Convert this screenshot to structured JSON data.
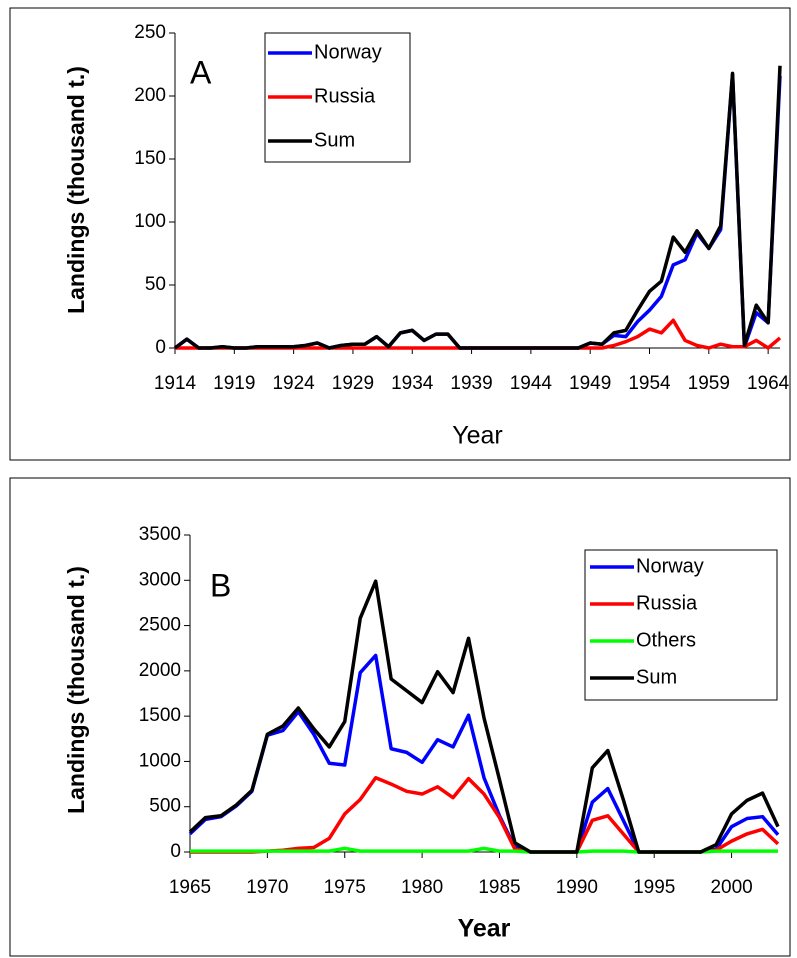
{
  "chart_data": [
    {
      "type": "line",
      "annotation": "A",
      "y_label": "Landings (thousand t.)",
      "x_label": "Year",
      "x": [
        1914,
        1915,
        1916,
        1917,
        1918,
        1919,
        1920,
        1921,
        1922,
        1923,
        1924,
        1925,
        1926,
        1927,
        1928,
        1929,
        1930,
        1931,
        1932,
        1933,
        1934,
        1935,
        1936,
        1937,
        1938,
        1939,
        1940,
        1941,
        1942,
        1943,
        1944,
        1945,
        1946,
        1947,
        1948,
        1949,
        1950,
        1951,
        1952,
        1953,
        1954,
        1955,
        1956,
        1957,
        1958,
        1959,
        1960,
        1961,
        1962,
        1963,
        1964,
        1965
      ],
      "xlim": [
        1914,
        1965
      ],
      "xticks": [
        1914,
        1919,
        1924,
        1929,
        1934,
        1939,
        1944,
        1949,
        1954,
        1959,
        1964
      ],
      "ylim": [
        0,
        250
      ],
      "yticks": [
        0,
        50,
        100,
        150,
        200,
        250
      ],
      "legend": "top-left",
      "series": [
        {
          "name": "Norway",
          "color": "#0000ff",
          "values": [
            0,
            7,
            0,
            0,
            1,
            0,
            0,
            1,
            1,
            1,
            1,
            2,
            4,
            0,
            2,
            3,
            3,
            9,
            1,
            12,
            14,
            6,
            11,
            11,
            0,
            0,
            0,
            0,
            0,
            0,
            0,
            0,
            0,
            0,
            0,
            4,
            3,
            10,
            9,
            21,
            30,
            41,
            66,
            70,
            91,
            79,
            94,
            217,
            1,
            28,
            20,
            216
          ]
        },
        {
          "name": "Russia",
          "color": "#ff0000",
          "values": [
            0,
            0,
            0,
            0,
            0,
            0,
            0,
            0,
            0,
            0,
            0,
            0,
            0,
            0,
            0,
            0,
            0,
            0,
            0,
            0,
            0,
            0,
            0,
            0,
            0,
            0,
            0,
            0,
            0,
            0,
            0,
            0,
            0,
            0,
            0,
            0,
            0,
            2,
            5,
            9,
            15,
            12,
            22,
            6,
            2,
            0,
            3,
            1,
            1,
            6,
            0,
            8
          ]
        },
        {
          "name": "Sum",
          "color": "#000000",
          "values": [
            0,
            7,
            0,
            0,
            1,
            0,
            0,
            1,
            1,
            1,
            1,
            2,
            4,
            0,
            2,
            3,
            3,
            9,
            1,
            12,
            14,
            6,
            11,
            11,
            0,
            0,
            0,
            0,
            0,
            0,
            0,
            0,
            0,
            0,
            0,
            4,
            3,
            12,
            14,
            30,
            45,
            53,
            88,
            76,
            93,
            79,
            97,
            218,
            2,
            34,
            20,
            224
          ]
        }
      ]
    },
    {
      "type": "line",
      "annotation": "B",
      "y_label": "Landings (thousand t.)",
      "x_label": "Year",
      "x": [
        1965,
        1966,
        1967,
        1968,
        1969,
        1970,
        1971,
        1972,
        1973,
        1974,
        1975,
        1976,
        1977,
        1978,
        1979,
        1980,
        1981,
        1982,
        1983,
        1984,
        1985,
        1986,
        1987,
        1988,
        1989,
        1990,
        1991,
        1992,
        1993,
        1994,
        1995,
        1996,
        1997,
        1998,
        1999,
        2000,
        2001,
        2002,
        2003
      ],
      "xlim": [
        1965,
        2003
      ],
      "xticks": [
        1965,
        1970,
        1975,
        1980,
        1985,
        1990,
        1995,
        2000
      ],
      "ylim": [
        0,
        3500
      ],
      "yticks": [
        0,
        500,
        1000,
        1500,
        2000,
        2500,
        3000,
        3500
      ],
      "legend": "top-right",
      "series": [
        {
          "name": "Norway",
          "color": "#0000ff",
          "values": [
            200,
            360,
            390,
            510,
            670,
            1290,
            1340,
            1550,
            1300,
            980,
            960,
            1980,
            2170,
            1140,
            1100,
            990,
            1240,
            1160,
            1510,
            820,
            400,
            50,
            0,
            0,
            0,
            0,
            550,
            700,
            350,
            0,
            0,
            0,
            0,
            0,
            30,
            280,
            370,
            390,
            190
          ]
        },
        {
          "name": "Russia",
          "color": "#ff0000",
          "values": [
            0,
            0,
            0,
            0,
            0,
            10,
            20,
            40,
            50,
            150,
            420,
            580,
            820,
            750,
            670,
            640,
            720,
            600,
            810,
            640,
            380,
            30,
            0,
            0,
            0,
            0,
            350,
            400,
            200,
            0,
            0,
            0,
            0,
            0,
            20,
            120,
            200,
            250,
            90
          ]
        },
        {
          "name": "Others",
          "color": "#00ff00",
          "values": [
            10,
            10,
            10,
            10,
            10,
            10,
            10,
            10,
            10,
            10,
            40,
            10,
            10,
            10,
            10,
            10,
            10,
            10,
            10,
            40,
            10,
            10,
            0,
            0,
            0,
            0,
            10,
            10,
            10,
            0,
            0,
            0,
            0,
            0,
            10,
            10,
            10,
            10,
            10
          ]
        },
        {
          "name": "Sum",
          "color": "#000000",
          "values": [
            220,
            380,
            400,
            520,
            680,
            1300,
            1390,
            1590,
            1360,
            1160,
            1440,
            2580,
            2990,
            1910,
            1780,
            1650,
            1990,
            1760,
            2360,
            1480,
            800,
            100,
            0,
            0,
            0,
            0,
            930,
            1120,
            580,
            0,
            0,
            0,
            0,
            0,
            80,
            420,
            570,
            650,
            280
          ]
        }
      ]
    }
  ]
}
